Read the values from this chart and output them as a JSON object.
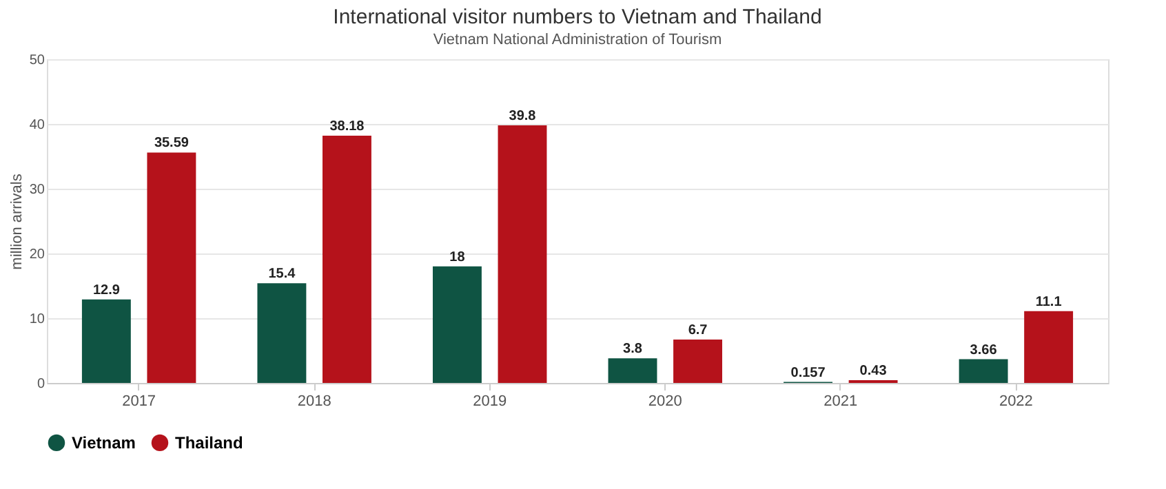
{
  "chart_data": {
    "type": "bar",
    "title": "International visitor numbers to Vietnam and Thailand",
    "subtitle": "Vietnam National Administration of Tourism",
    "ylabel": "million arrivals",
    "categories": [
      "2017",
      "2018",
      "2019",
      "2020",
      "2021",
      "2022"
    ],
    "series": [
      {
        "name": "Vietnam",
        "color": "#0f5443",
        "values": [
          12.9,
          15.4,
          18,
          3.8,
          0.157,
          3.66
        ]
      },
      {
        "name": "Thailand",
        "color": "#b5121b",
        "values": [
          35.59,
          38.18,
          39.8,
          6.7,
          0.43,
          11.1
        ]
      }
    ],
    "ylim": [
      0,
      50
    ],
    "yticks": [
      0,
      10,
      20,
      30,
      40,
      50
    ],
    "grid": "y",
    "legend": "bottom",
    "data_labels": true
  }
}
